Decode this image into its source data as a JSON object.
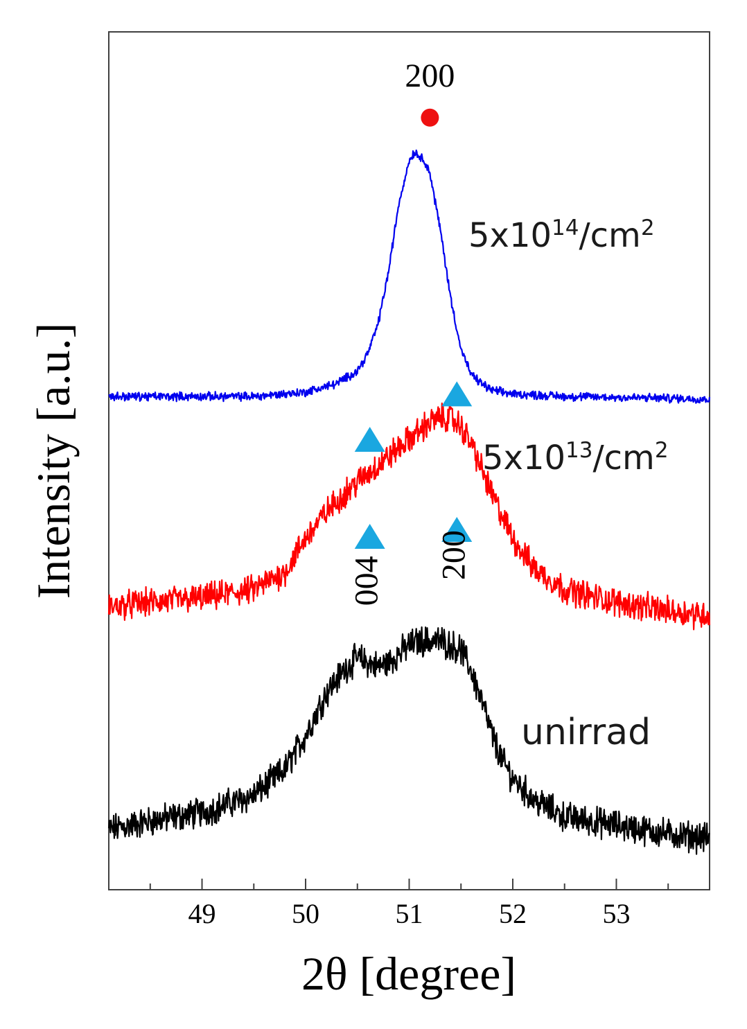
{
  "chart_data": {
    "type": "line",
    "xlabel": "2θ [degree]",
    "ylabel": "Intensity [a.u.]",
    "xlim": [
      48.1,
      53.9
    ],
    "ylim": [
      0,
      1
    ],
    "x_ticks": [
      49,
      50,
      51,
      52,
      53
    ],
    "x_ticks_minor": [
      48.5,
      49.5,
      50.5,
      51.5,
      52.5,
      53.5
    ],
    "y_ticks_shown": false,
    "grid": false,
    "legend": "none",
    "series": [
      {
        "name": "unirrad",
        "label": "unirrad",
        "color": "#000000",
        "noise": 0.014,
        "x": [
          48.1,
          48.5,
          49.0,
          49.5,
          49.8,
          50.0,
          50.2,
          50.4,
          50.5,
          50.6,
          50.7,
          50.8,
          50.9,
          51.0,
          51.1,
          51.2,
          51.3,
          51.4,
          51.5,
          51.6,
          51.7,
          51.8,
          51.9,
          52.0,
          52.2,
          52.5,
          53.0,
          53.5,
          53.9
        ],
        "y": [
          0.07,
          0.08,
          0.09,
          0.11,
          0.14,
          0.18,
          0.23,
          0.26,
          0.27,
          0.265,
          0.26,
          0.265,
          0.275,
          0.285,
          0.29,
          0.29,
          0.29,
          0.285,
          0.28,
          0.255,
          0.22,
          0.18,
          0.15,
          0.13,
          0.105,
          0.085,
          0.075,
          0.065,
          0.06
        ]
      },
      {
        "name": "5x10^13/cm^2",
        "label_base": "5x10",
        "label_exp": "13",
        "label_unit": "/cm",
        "label_unit_exp": "2",
        "color": "#ff0000",
        "noise": 0.013,
        "x": [
          48.1,
          48.5,
          49.0,
          49.5,
          49.8,
          50.0,
          50.2,
          50.4,
          50.6,
          50.8,
          51.0,
          51.2,
          51.3,
          51.4,
          51.5,
          51.6,
          51.7,
          51.8,
          52.0,
          52.2,
          52.5,
          53.0,
          53.5,
          53.9
        ],
        "y": [
          0.33,
          0.335,
          0.34,
          0.35,
          0.37,
          0.41,
          0.44,
          0.465,
          0.485,
          0.505,
          0.525,
          0.545,
          0.55,
          0.55,
          0.54,
          0.52,
          0.49,
          0.46,
          0.41,
          0.375,
          0.35,
          0.335,
          0.325,
          0.32
        ]
      },
      {
        "name": "5x10^14/cm^2",
        "label_base": "5x10",
        "label_exp": "14",
        "label_unit": "/cm",
        "label_unit_exp": "2",
        "color": "#0000ee",
        "noise": 0.004,
        "x": [
          48.1,
          49.0,
          49.5,
          50.0,
          50.3,
          50.5,
          50.6,
          50.7,
          50.8,
          50.9,
          51.0,
          51.05,
          51.1,
          51.15,
          51.2,
          51.3,
          51.4,
          51.5,
          51.6,
          51.7,
          51.8,
          52.0,
          52.5,
          53.0,
          53.9
        ],
        "y": [
          0.575,
          0.575,
          0.575,
          0.58,
          0.59,
          0.605,
          0.625,
          0.66,
          0.72,
          0.8,
          0.85,
          0.86,
          0.855,
          0.85,
          0.835,
          0.77,
          0.69,
          0.63,
          0.6,
          0.59,
          0.582,
          0.578,
          0.575,
          0.574,
          0.572
        ]
      }
    ],
    "annotations": [
      {
        "text": "200",
        "x": 51.2,
        "y": 0.945,
        "rotate": 0
      },
      {
        "text": "004",
        "x": 50.62,
        "y": 0.36,
        "rotate": -90
      },
      {
        "text": "200",
        "x": 51.46,
        "y": 0.39,
        "rotate": -90
      }
    ],
    "markers": [
      {
        "shape": "circle",
        "color": "#ee1111",
        "x": 51.2,
        "y": 0.9
      },
      {
        "shape": "triangle",
        "color": "#1aa7e0",
        "x": 51.46,
        "y": 0.578
      },
      {
        "shape": "triangle",
        "color": "#1aa7e0",
        "x": 50.62,
        "y": 0.525
      },
      {
        "shape": "triangle",
        "color": "#1aa7e0",
        "x": 51.46,
        "y": 0.42
      },
      {
        "shape": "triangle",
        "color": "#1aa7e0",
        "x": 50.62,
        "y": 0.412
      }
    ]
  }
}
